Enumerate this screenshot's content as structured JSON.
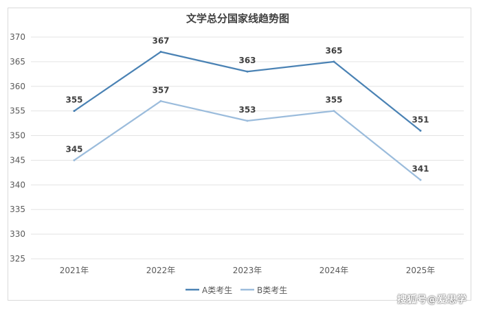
{
  "chart_data": {
    "type": "line",
    "title": "文学总分国家线趋势图",
    "categories": [
      "2021年",
      "2022年",
      "2023年",
      "2024年",
      "2025年"
    ],
    "series": [
      {
        "name": "A类考生",
        "color": "#4a82b4",
        "values": [
          355,
          367,
          363,
          365,
          351
        ]
      },
      {
        "name": "B类考生",
        "color": "#9bbcdc",
        "values": [
          345,
          357,
          353,
          355,
          341
        ]
      }
    ],
    "yticks": [
      325,
      330,
      335,
      340,
      345,
      350,
      355,
      360,
      365,
      370
    ],
    "ylim": [
      325,
      370
    ],
    "grid": true,
    "legend": "bottom",
    "data_labels": true
  },
  "watermark": "搜狐号@爱思学"
}
